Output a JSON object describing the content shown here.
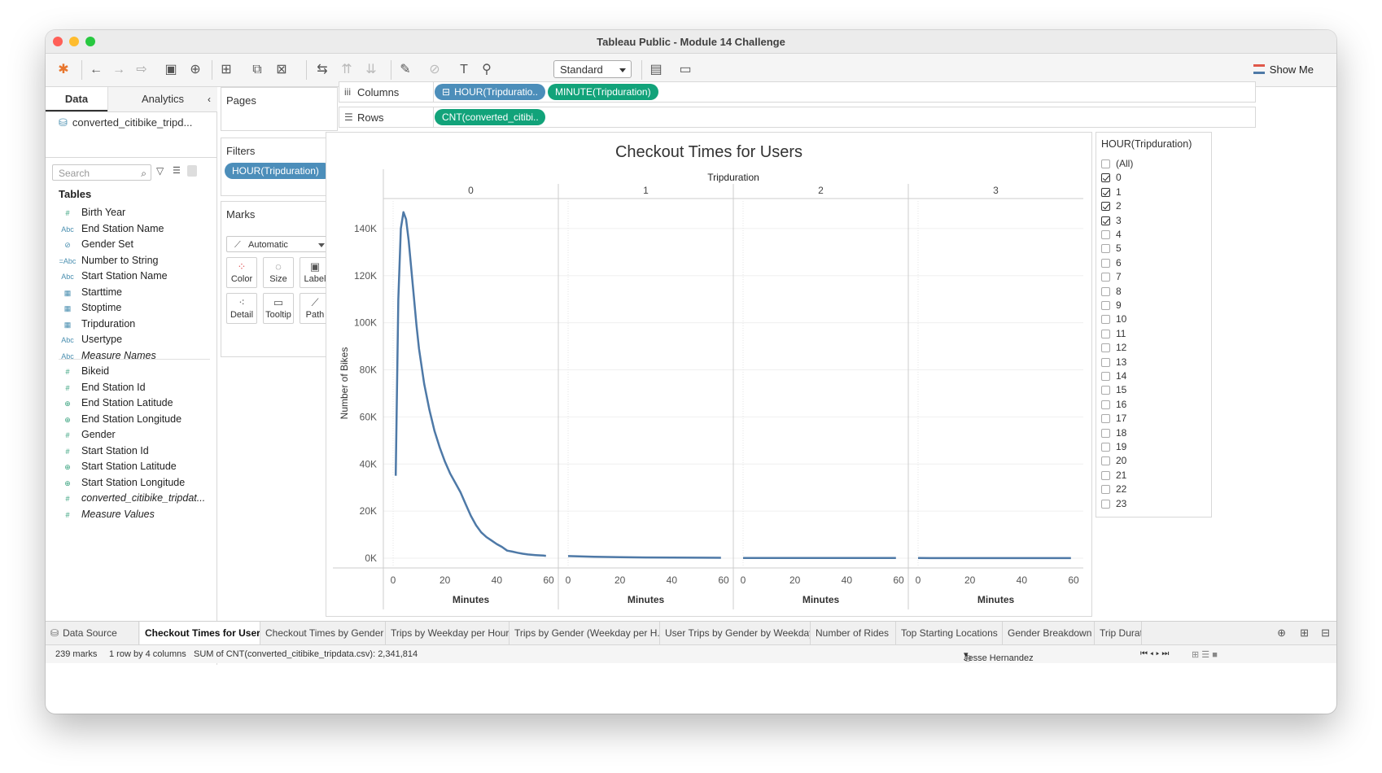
{
  "window": {
    "title": "Tableau Public - Module 14 Challenge"
  },
  "toolbar": {
    "mark_style": "Standard",
    "show_me": "Show Me"
  },
  "data_pane": {
    "tabs": [
      "Data",
      "Analytics"
    ],
    "datasource": "converted_citibike_tripd...",
    "search_placeholder": "Search",
    "tables_heading": "Tables",
    "dimensions": [
      {
        "type": "#",
        "label": "Birth Year"
      },
      {
        "type": "Abc",
        "label": "End Station Name"
      },
      {
        "type": "set",
        "label": "Gender Set"
      },
      {
        "type": "=Abc",
        "label": "Number to String"
      },
      {
        "type": "Abc",
        "label": "Start Station Name"
      },
      {
        "type": "date",
        "label": "Starttime"
      },
      {
        "type": "date",
        "label": "Stoptime"
      },
      {
        "type": "date",
        "label": "Tripduration"
      },
      {
        "type": "Abc",
        "label": "Usertype"
      },
      {
        "type": "Abc",
        "label": "Measure Names"
      }
    ],
    "measures": [
      {
        "type": "#",
        "label": "Bikeid"
      },
      {
        "type": "#",
        "label": "End Station Id"
      },
      {
        "type": "globe",
        "label": "End Station Latitude"
      },
      {
        "type": "globe",
        "label": "End Station Longitude"
      },
      {
        "type": "#",
        "label": "Gender"
      },
      {
        "type": "#",
        "label": "Start Station Id"
      },
      {
        "type": "globe",
        "label": "Start Station Latitude"
      },
      {
        "type": "globe",
        "label": "Start Station Longitude"
      },
      {
        "type": "#",
        "label": "converted_citibike_tripdat..."
      },
      {
        "type": "#",
        "label": "Measure Values"
      }
    ]
  },
  "shelves": {
    "pages_label": "Pages",
    "filters_label": "Filters",
    "filter_pill": "HOUR(Tripduration)",
    "marks_label": "Marks",
    "marks_type": "Automatic",
    "mark_buttons": [
      "Color",
      "Size",
      "Label",
      "Detail",
      "Tooltip",
      "Path"
    ],
    "columns_label": "Columns",
    "columns_pills": [
      "HOUR(Tripduratio..",
      "MINUTE(Tripduration)"
    ],
    "rows_label": "Rows",
    "rows_pill": "CNT(converted_citibi.."
  },
  "chart_data": {
    "type": "line",
    "title": "Checkout Times for Users",
    "panel_header": "Tripduration",
    "panels": [
      "0",
      "1",
      "2",
      "3"
    ],
    "xlabel": "Minutes",
    "ylabel": "Number of Bikes",
    "xlim": [
      0,
      60
    ],
    "x_ticks": [
      0,
      20,
      40,
      60
    ],
    "ylim": [
      0,
      150000
    ],
    "y_ticks": [
      "0K",
      "20K",
      "40K",
      "60K",
      "80K",
      "100K",
      "120K",
      "140K"
    ],
    "y_tick_values": [
      0,
      20000,
      40000,
      60000,
      80000,
      100000,
      120000,
      140000
    ],
    "color": "#4e79a7",
    "series": [
      {
        "panel": "0",
        "x": [
          1,
          2,
          3,
          4,
          5,
          6,
          7,
          8,
          9,
          10,
          12,
          14,
          16,
          18,
          20,
          22,
          24,
          26,
          28,
          30,
          32,
          34,
          36,
          38,
          40,
          42,
          44,
          46,
          48,
          50,
          52,
          55,
          58,
          59
        ],
        "y": [
          35000,
          110000,
          140000,
          147000,
          144000,
          135000,
          123000,
          111000,
          99000,
          89000,
          74000,
          63000,
          54000,
          47000,
          41000,
          36000,
          32000,
          28000,
          23000,
          18000,
          14000,
          11000,
          9000,
          7500,
          6000,
          4800,
          3200,
          2800,
          2300,
          1900,
          1600,
          1300,
          1100,
          1000
        ]
      },
      {
        "panel": "1",
        "x": [
          0,
          10,
          20,
          30,
          40,
          50,
          59
        ],
        "y": [
          900,
          600,
          400,
          300,
          250,
          200,
          180
        ]
      },
      {
        "panel": "2",
        "x": [
          0,
          20,
          40,
          59
        ],
        "y": [
          120,
          100,
          90,
          80
        ]
      },
      {
        "panel": "3",
        "x": [
          0,
          20,
          40,
          59
        ],
        "y": [
          60,
          50,
          40,
          40
        ]
      }
    ]
  },
  "legend": {
    "title": "HOUR(Tripduration)",
    "items": [
      {
        "label": "(All)",
        "checked": false
      },
      {
        "label": "0",
        "checked": true
      },
      {
        "label": "1",
        "checked": true
      },
      {
        "label": "2",
        "checked": true
      },
      {
        "label": "3",
        "checked": true
      },
      {
        "label": "4",
        "checked": false
      },
      {
        "label": "5",
        "checked": false
      },
      {
        "label": "6",
        "checked": false
      },
      {
        "label": "7",
        "checked": false
      },
      {
        "label": "8",
        "checked": false
      },
      {
        "label": "9",
        "checked": false
      },
      {
        "label": "10",
        "checked": false
      },
      {
        "label": "11",
        "checked": false
      },
      {
        "label": "12",
        "checked": false
      },
      {
        "label": "13",
        "checked": false
      },
      {
        "label": "14",
        "checked": false
      },
      {
        "label": "15",
        "checked": false
      },
      {
        "label": "16",
        "checked": false
      },
      {
        "label": "17",
        "checked": false
      },
      {
        "label": "18",
        "checked": false
      },
      {
        "label": "19",
        "checked": false
      },
      {
        "label": "20",
        "checked": false
      },
      {
        "label": "21",
        "checked": false
      },
      {
        "label": "22",
        "checked": false
      },
      {
        "label": "23",
        "checked": false
      }
    ]
  },
  "sheet_tabs": {
    "data_source": "Data Source",
    "tabs": [
      "Checkout Times for Users",
      "Checkout Times by Gender",
      "Trips by Weekday per Hour",
      "Trips by Gender (Weekday per H...",
      "User Trips by Gender by Weekday",
      "Number of Rides",
      "Top Starting Locations",
      "Gender Breakdown",
      "Trip Duration by"
    ],
    "active": "Checkout Times for Users"
  },
  "status": {
    "marks": "239 marks",
    "dims": "1 row by 4 columns",
    "sum": "SUM of CNT(converted_citibike_tripdata.csv): 2,341,814",
    "user": "Jesse Hernandez"
  }
}
